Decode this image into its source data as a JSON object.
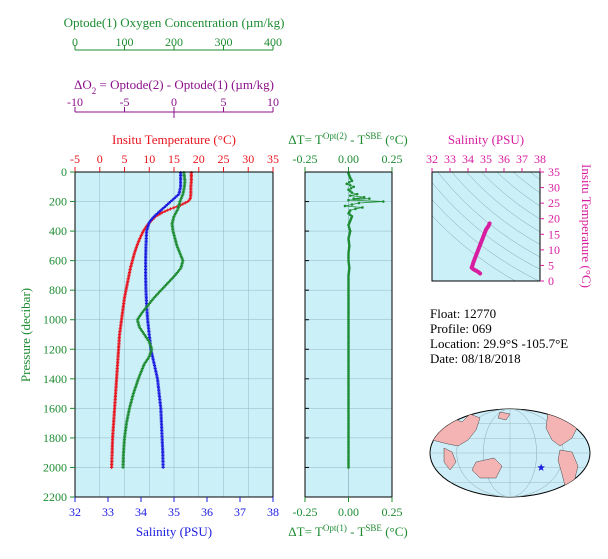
{
  "colors": {
    "green": "#1e8c32",
    "purple": "#8b108b",
    "red": "#e8141e",
    "blue": "#1c1ce0",
    "magenta": "#d81ea0",
    "plot_bg": "#ccf0f8",
    "land": "#f5b4b4",
    "ocean": "#cdeef8",
    "star": "#1c1ce0"
  },
  "header": {
    "oxygen_title": "Optode(1) Oxygen Concentration (µm/kg)",
    "delta_o2_title_main": "ΔO",
    "delta_o2_title_sub": "2",
    "delta_o2_title_rest": " = Optode(2) - Optode(1)    (µm/kg)"
  },
  "info": {
    "float": "Float:  12770",
    "profile": "Profile:  069",
    "location": "Location:  29.9°S  -105.7°E",
    "date": "Date:  08/18/2018"
  },
  "chart_data": [
    {
      "type": "line",
      "panel": "main",
      "title": "Insitu Temperature (°C)",
      "ylabel": "Pressure (decibar)",
      "xlabel": "Salinity (PSU)",
      "ylim": [
        2200,
        0
      ],
      "yticks": [
        0,
        200,
        400,
        600,
        800,
        1000,
        1200,
        1400,
        1600,
        1800,
        2000,
        2200
      ],
      "axes": {
        "temperature": {
          "range": [
            -5,
            35
          ],
          "ticks": [
            -5,
            0,
            5,
            10,
            15,
            20,
            25,
            30,
            35
          ],
          "position": "top"
        },
        "oxygen": {
          "range": [
            0,
            400
          ],
          "ticks": [
            0,
            100,
            200,
            300,
            400
          ],
          "position": "top"
        },
        "delta_o2": {
          "range": [
            -10,
            10
          ],
          "ticks": [
            -10,
            -5,
            0,
            5,
            10
          ],
          "position": "top"
        },
        "salinity": {
          "range": [
            32,
            38
          ],
          "ticks": [
            32,
            33,
            34,
            35,
            36,
            37,
            38
          ],
          "position": "bottom"
        }
      },
      "series": [
        {
          "axis": "temperature",
          "color": "red",
          "marker": "plus",
          "points": [
            [
              18.5,
              5
            ],
            [
              18.5,
              60
            ],
            [
              18.4,
              100
            ],
            [
              18.4,
              150
            ],
            [
              18.3,
              180
            ],
            [
              17.8,
              200
            ],
            [
              16.3,
              225
            ],
            [
              14.3,
              250
            ],
            [
              12.6,
              275
            ],
            [
              11.3,
              300
            ],
            [
              10.4,
              330
            ],
            [
              9.6,
              360
            ],
            [
              8.8,
              400
            ],
            [
              8.1,
              450
            ],
            [
              7.5,
              500
            ],
            [
              7.0,
              550
            ],
            [
              6.6,
              600
            ],
            [
              6.2,
              650
            ],
            [
              5.9,
              700
            ],
            [
              5.6,
              750
            ],
            [
              5.3,
              800
            ],
            [
              5.0,
              850
            ],
            [
              4.8,
              900
            ],
            [
              4.6,
              950
            ],
            [
              4.4,
              1000
            ],
            [
              4.2,
              1050
            ],
            [
              4.0,
              1100
            ],
            [
              3.8,
              1200
            ],
            [
              3.6,
              1300
            ],
            [
              3.4,
              1400
            ],
            [
              3.2,
              1500
            ],
            [
              3.0,
              1600
            ],
            [
              2.8,
              1700
            ],
            [
              2.6,
              1800
            ],
            [
              2.5,
              1900
            ],
            [
              2.4,
              2000
            ]
          ]
        },
        {
          "axis": "salinity",
          "color": "blue",
          "marker": "plus",
          "points": [
            [
              35.2,
              5
            ],
            [
              35.2,
              100
            ],
            [
              35.15,
              150
            ],
            [
              34.9,
              200
            ],
            [
              34.6,
              260
            ],
            [
              34.4,
              300
            ],
            [
              34.25,
              340
            ],
            [
              34.17,
              400
            ],
            [
              34.15,
              500
            ],
            [
              34.14,
              600
            ],
            [
              34.14,
              700
            ],
            [
              34.15,
              800
            ],
            [
              34.17,
              900
            ],
            [
              34.2,
              1000
            ],
            [
              34.25,
              1100
            ],
            [
              34.3,
              1200
            ],
            [
              34.4,
              1300
            ],
            [
              34.5,
              1400
            ],
            [
              34.55,
              1500
            ],
            [
              34.6,
              1600
            ],
            [
              34.62,
              1700
            ],
            [
              34.64,
              1800
            ],
            [
              34.66,
              1900
            ],
            [
              34.67,
              2000
            ]
          ]
        },
        {
          "axis": "oxygen",
          "color": "green",
          "marker": "plus",
          "points": [
            [
              220,
              5
            ],
            [
              222,
              60
            ],
            [
              221,
              100
            ],
            [
              218,
              150
            ],
            [
              212,
              200
            ],
            [
              208,
              250
            ],
            [
              200,
              300
            ],
            [
              196,
              350
            ],
            [
              198,
              400
            ],
            [
              202,
              450
            ],
            [
              206,
              500
            ],
            [
              212,
              550
            ],
            [
              218,
              600
            ],
            [
              214,
              650
            ],
            [
              202,
              700
            ],
            [
              188,
              750
            ],
            [
              174,
              800
            ],
            [
              160,
              850
            ],
            [
              148,
              900
            ],
            [
              136,
              950
            ],
            [
              126,
              1000
            ],
            [
              130,
              1050
            ],
            [
              140,
              1100
            ],
            [
              150,
              1150
            ],
            [
              155,
              1200
            ],
            [
              150,
              1250
            ],
            [
              140,
              1300
            ],
            [
              128,
              1400
            ],
            [
              118,
              1500
            ],
            [
              110,
              1600
            ],
            [
              104,
              1700
            ],
            [
              100,
              1800
            ],
            [
              98,
              1900
            ],
            [
              97,
              2000
            ]
          ]
        }
      ]
    },
    {
      "type": "scatter",
      "panel": "delta_t",
      "title": "ΔT= T^Opt(2) - T^SBE (°C)",
      "xlabel": "ΔT= T^Opt(1) - T^SBE (°C)",
      "title_parts": {
        "a": "ΔT= T",
        "b": "Opt(2)",
        "c": " - T",
        "d": "SBE",
        "e": " (°C)"
      },
      "xlabel_parts": {
        "a": "ΔT= T",
        "b": "Opt(1)",
        "c": " - T",
        "d": "SBE",
        "e": " (°C)"
      },
      "xlim": [
        -0.25,
        0.25
      ],
      "xticks": [
        "-0.25",
        "0.00",
        "0.25"
      ],
      "ylim": [
        2200,
        0
      ],
      "points": [
        [
          0.0,
          10
        ],
        [
          0.01,
          40
        ],
        [
          0.02,
          60
        ],
        [
          -0.01,
          80
        ],
        [
          0.03,
          100
        ],
        [
          0.0,
          120
        ],
        [
          0.02,
          140
        ],
        [
          0.05,
          150
        ],
        [
          0.01,
          160
        ],
        [
          0.09,
          170
        ],
        [
          0.03,
          180
        ],
        [
          0.12,
          180
        ],
        [
          0.0,
          190
        ],
        [
          0.2,
          200
        ],
        [
          0.06,
          210
        ],
        [
          0.02,
          220
        ],
        [
          -0.02,
          230
        ],
        [
          0.08,
          240
        ],
        [
          0.04,
          250
        ],
        [
          0.01,
          260
        ],
        [
          0.0,
          280
        ],
        [
          0.02,
          300
        ],
        [
          0.01,
          330
        ],
        [
          0.0,
          360
        ],
        [
          0.01,
          400
        ],
        [
          0.0,
          450
        ],
        [
          0.005,
          500
        ],
        [
          0.0,
          550
        ],
        [
          0.0,
          600
        ],
        [
          0.005,
          650
        ],
        [
          0.0,
          700
        ],
        [
          0.0,
          750
        ],
        [
          0.0,
          800
        ],
        [
          0.0,
          850
        ],
        [
          0.0,
          900
        ],
        [
          0.0,
          950
        ],
        [
          0.0,
          1000
        ],
        [
          0.0,
          1050
        ],
        [
          0.0,
          1100
        ],
        [
          0.0,
          1150
        ],
        [
          0.0,
          1200
        ],
        [
          0.0,
          1250
        ],
        [
          0.0,
          1300
        ],
        [
          0.0,
          1350
        ],
        [
          0.0,
          1400
        ],
        [
          0.0,
          1450
        ],
        [
          0.0,
          1500
        ],
        [
          0.0,
          1550
        ],
        [
          0.0,
          1600
        ],
        [
          0.0,
          1650
        ],
        [
          0.0,
          1700
        ],
        [
          0.0,
          1750
        ],
        [
          0.0,
          1800
        ],
        [
          0.0,
          1850
        ],
        [
          0.0,
          1900
        ],
        [
          0.0,
          1950
        ],
        [
          0.0,
          2000
        ]
      ]
    },
    {
      "type": "line",
      "panel": "ts",
      "title": "Salinity (PSU)",
      "ylabel": "Insitu Temperature (°C)",
      "xlim": [
        32,
        38
      ],
      "xticks": [
        32,
        33,
        34,
        35,
        36,
        37,
        38
      ],
      "ylim": [
        0,
        35
      ],
      "yticks": [
        0,
        5,
        10,
        15,
        20,
        25,
        30,
        35
      ],
      "points": [
        [
          35.2,
          18.5
        ],
        [
          35.15,
          17.8
        ],
        [
          35.0,
          16.5
        ],
        [
          34.9,
          15.0
        ],
        [
          34.8,
          13.5
        ],
        [
          34.7,
          12.0
        ],
        [
          34.6,
          10.5
        ],
        [
          34.5,
          9.0
        ],
        [
          34.4,
          7.5
        ],
        [
          34.3,
          6.0
        ],
        [
          34.25,
          5.0
        ],
        [
          34.2,
          4.3
        ],
        [
          34.3,
          3.8
        ],
        [
          34.45,
          3.3
        ],
        [
          34.6,
          2.8
        ],
        [
          34.67,
          2.4
        ]
      ]
    }
  ]
}
